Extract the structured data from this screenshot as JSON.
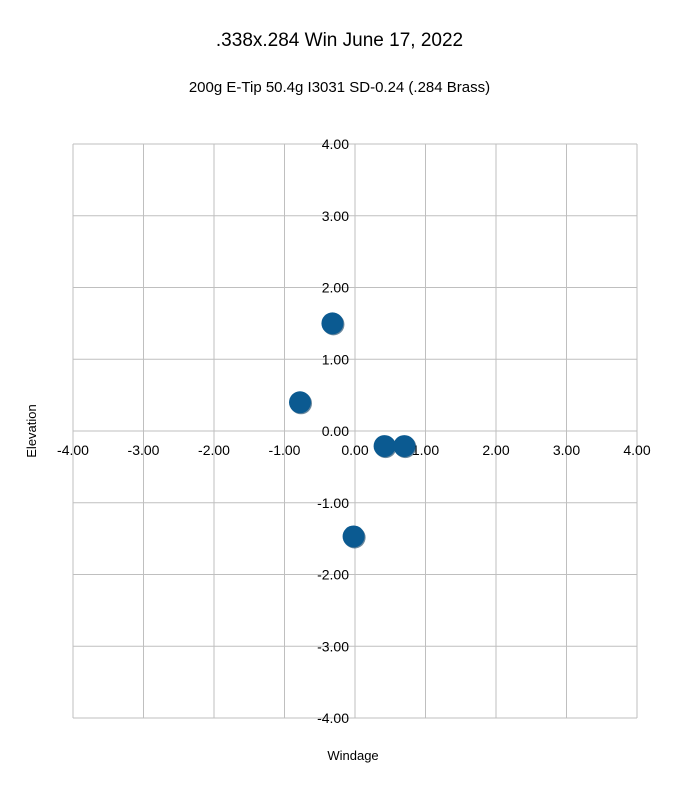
{
  "chart_data": {
    "type": "scatter",
    "title": ".338x.284 Win June 17, 2022",
    "subtitle": "200g E-Tip 50.4g I3031 SD-0.24 (.284 Brass)",
    "xlabel": "Windage",
    "ylabel": "Elevation",
    "xlim": [
      -4,
      4
    ],
    "ylim": [
      -4,
      4
    ],
    "xticks": [
      -4,
      -3,
      -2,
      -1,
      0,
      1,
      2,
      3,
      4
    ],
    "yticks": [
      4,
      3,
      2,
      1,
      0,
      -1,
      -2,
      -3,
      -4
    ],
    "x_tick_labels": [
      "-4.00",
      "-3.00",
      "-2.00",
      "-1.00",
      "0.00",
      "1.00",
      "2.00",
      "3.00",
      "4.00"
    ],
    "y_tick_labels": [
      "4.00",
      "3.00",
      "2.00",
      "1.00",
      "0.00",
      "-1.00",
      "-2.00",
      "-3.00",
      "-4.00"
    ],
    "grid": true,
    "legend": "none",
    "marker_color": "#0B5A91",
    "grid_color": "#BFBFBF",
    "series": [
      {
        "points": [
          {
            "x": -0.32,
            "y": 1.5
          },
          {
            "x": -0.78,
            "y": 0.4
          },
          {
            "x": 0.42,
            "y": -0.21
          },
          {
            "x": 0.7,
            "y": -0.21
          },
          {
            "x": -0.02,
            "y": -1.47
          }
        ]
      }
    ]
  }
}
